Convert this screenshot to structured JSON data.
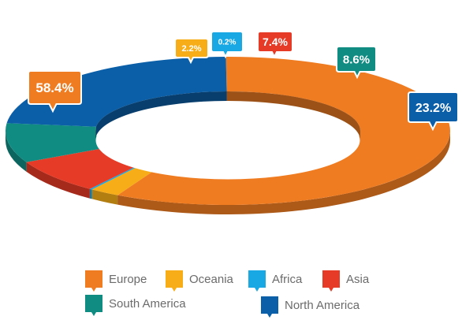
{
  "chart_data": {
    "type": "pie",
    "variant": "3d-donut",
    "slices": [
      {
        "label": "Europe",
        "value": 58.4,
        "display": "58.4%",
        "color": "#F07C22"
      },
      {
        "label": "Oceania",
        "value": 2.2,
        "display": "2.2%",
        "color": "#F7AD18"
      },
      {
        "label": "Africa",
        "value": 0.2,
        "display": "0.2%",
        "color": "#18A8E4"
      },
      {
        "label": "Asia",
        "value": 7.4,
        "display": "7.4%",
        "color": "#E63B27"
      },
      {
        "label": "South America",
        "value": 8.6,
        "display": "8.6%",
        "color": "#118C82"
      },
      {
        "label": "North America",
        "value": 23.2,
        "display": "23.2%",
        "color": "#0B5FA8"
      }
    ],
    "legend_position": "bottom"
  }
}
